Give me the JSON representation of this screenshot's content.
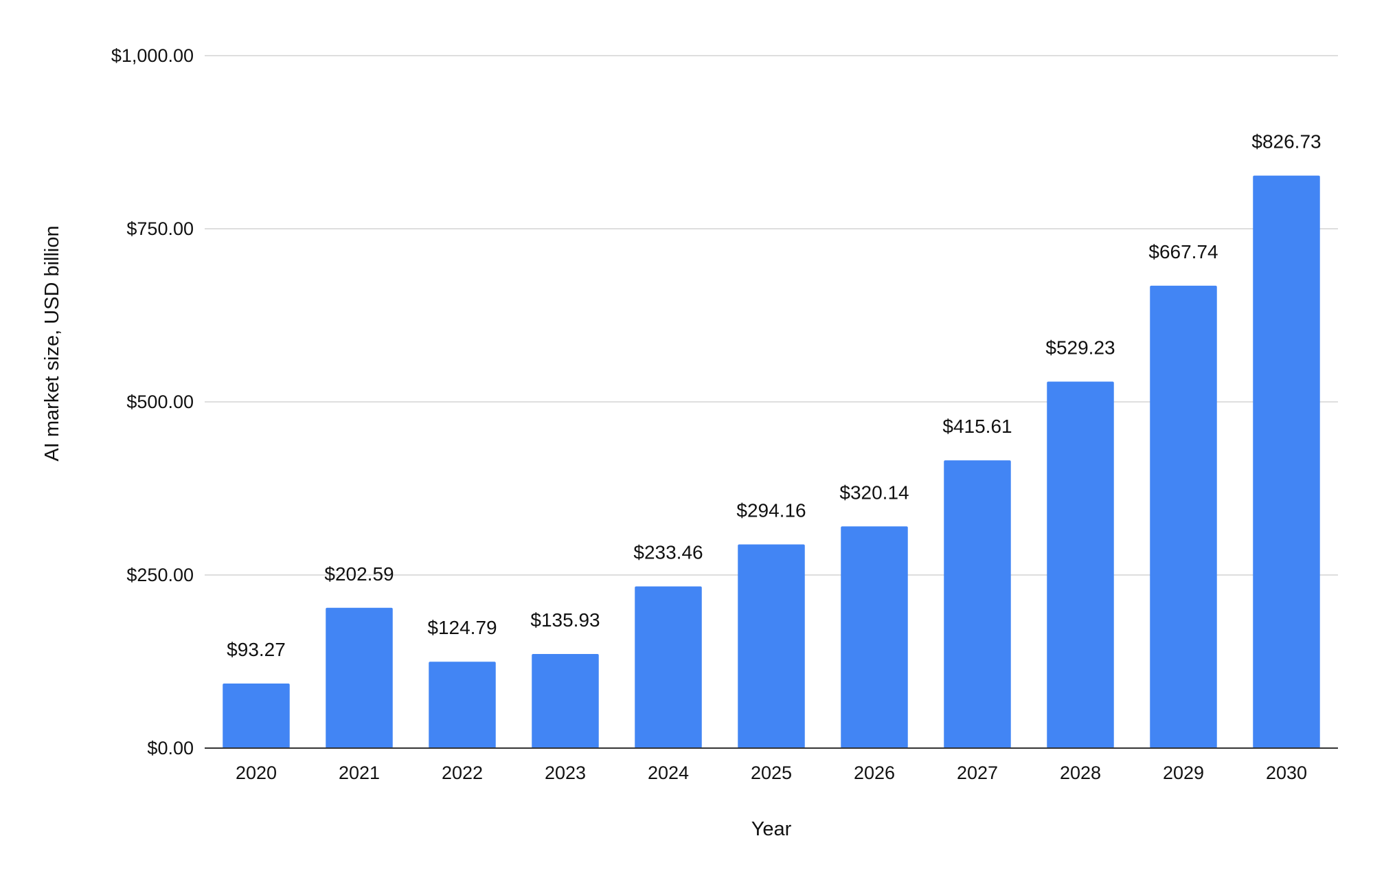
{
  "chart_data": {
    "type": "bar",
    "categories": [
      "2020",
      "2021",
      "2022",
      "2023",
      "2024",
      "2025",
      "2026",
      "2027",
      "2028",
      "2029",
      "2030"
    ],
    "series": [
      {
        "values": [
          93.27,
          202.59,
          124.79,
          135.93,
          233.46,
          294.16,
          320.14,
          415.61,
          529.23,
          667.74,
          826.73
        ],
        "data_labels": [
          "$93.27",
          "$202.59",
          "$124.79",
          "$135.93",
          "$233.46",
          "$294.16",
          "$320.14",
          "$415.61",
          "$529.23",
          "$667.74",
          "$826.73"
        ],
        "color": "#4285f4"
      }
    ],
    "title": "",
    "xlabel": "Year",
    "ylabel": "AI market size, USD billion",
    "ylim": [
      0,
      1000
    ],
    "yticks": [
      0,
      250,
      500,
      750,
      1000
    ],
    "ytick_labels": [
      "$0.00",
      "$250.00",
      "$500.00",
      "$750.00",
      "$1,000.00"
    ],
    "grid": true,
    "legend": "none"
  }
}
